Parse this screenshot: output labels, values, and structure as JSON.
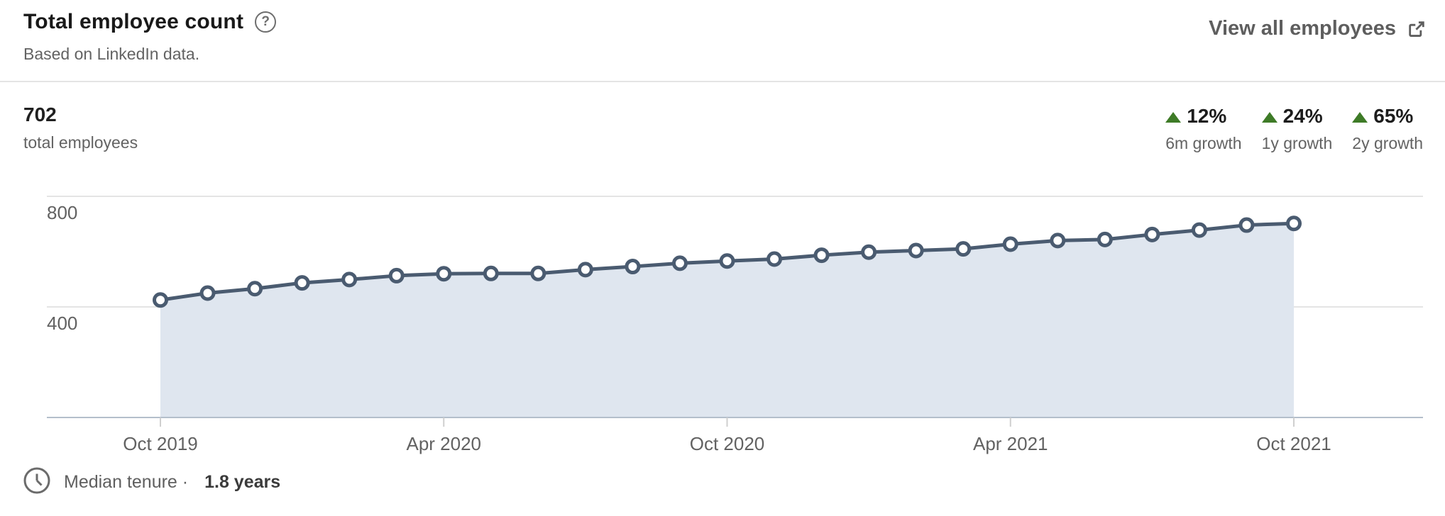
{
  "header": {
    "title": "Total employee count",
    "subtitle": "Based on LinkedIn data.",
    "view_all_label": "View all employees"
  },
  "summary": {
    "value": "702",
    "label": "total employees",
    "growth_stats": [
      {
        "pct": "12%",
        "label": "6m growth",
        "direction": "up"
      },
      {
        "pct": "24%",
        "label": "1y growth",
        "direction": "up"
      },
      {
        "pct": "65%",
        "label": "2y growth",
        "direction": "up"
      }
    ]
  },
  "chart_data": {
    "type": "area",
    "title": "Total employee count",
    "x": [
      "Oct 2019",
      "Nov 2019",
      "Dec 2019",
      "Jan 2020",
      "Feb 2020",
      "Mar 2020",
      "Apr 2020",
      "May 2020",
      "Jun 2020",
      "Jul 2020",
      "Aug 2020",
      "Sep 2020",
      "Oct 2020",
      "Nov 2020",
      "Dec 2020",
      "Jan 2021",
      "Feb 2021",
      "Mar 2021",
      "Apr 2021",
      "May 2021",
      "Jun 2021",
      "Jul 2021",
      "Aug 2021",
      "Sep 2021",
      "Oct 2021"
    ],
    "values": [
      425,
      450,
      466,
      487,
      499,
      513,
      520,
      521,
      521,
      535,
      546,
      558,
      566,
      573,
      587,
      598,
      604,
      610,
      627,
      640,
      644,
      662,
      678,
      696,
      702
    ],
    "x_tick_labels": [
      "Oct 2019",
      "Apr 2020",
      "Oct 2020",
      "Apr 2021",
      "Oct 2021"
    ],
    "x_tick_indices": [
      0,
      6,
      12,
      18,
      24
    ],
    "y_ticks": [
      800,
      400
    ],
    "ylim": [
      0,
      900
    ],
    "grid": "horizontal",
    "legend": "none",
    "line_color": "#4a5b70",
    "fill_color": "#dfe6ef",
    "marker": "circle-white",
    "gridline_color": "#e4e4e4",
    "baseline_color": "#b4bfcb",
    "tick_color": "#cfcfcf",
    "axis_label_color": "#626262"
  },
  "footer": {
    "label": "Median tenure ·",
    "value": "1.8 years"
  },
  "colors": {
    "growth_green": "#3e7b27",
    "accent_text": "#1a1a1a",
    "muted_text": "#636363"
  }
}
